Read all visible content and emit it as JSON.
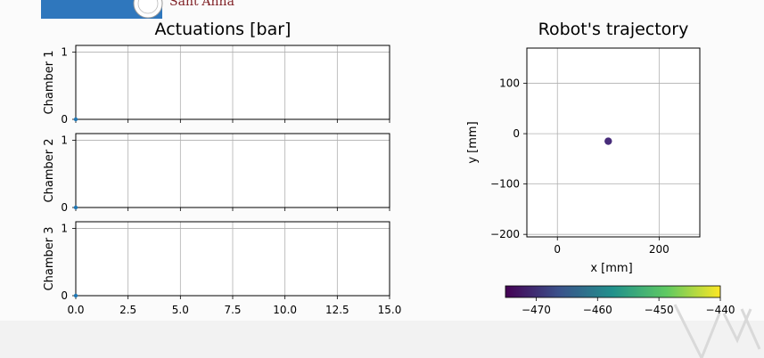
{
  "header": {
    "logo_text": "Sant'Anna",
    "brand_color": "#2f77bd",
    "logo_color": "#7e1d22"
  },
  "chart_data": [
    {
      "type": "line",
      "title": "Actuations [bar]",
      "panels": [
        {
          "ylabel": "Chamber 1",
          "ylim": [
            0,
            1.1
          ]
        },
        {
          "ylabel": "Chamber 2",
          "ylim": [
            0,
            1.1
          ]
        },
        {
          "ylabel": "Chamber 3",
          "ylim": [
            0,
            1.1
          ]
        }
      ],
      "y_ticks": [
        "0",
        "1"
      ],
      "x_ticks": [
        "0.0",
        "2.5",
        "5.0",
        "7.5",
        "10.0",
        "12.5",
        "15.0"
      ],
      "xlim": [
        0,
        15
      ],
      "series": [
        {
          "x": [
            0.0
          ],
          "y": [
            0.0
          ]
        },
        {
          "x": [
            0.0
          ],
          "y": [
            0.0
          ]
        },
        {
          "x": [
            0.0
          ],
          "y": [
            0.0
          ]
        }
      ],
      "grid": true,
      "color": "#1f77b4"
    },
    {
      "type": "scatter",
      "title": "Robot's trajectory",
      "xlabel": "x [mm]",
      "ylabel": "y [mm]",
      "xlim": [
        -60,
        280
      ],
      "ylim": [
        -205,
        170
      ],
      "x_ticks": [
        {
          "v": 0,
          "label": "0"
        },
        {
          "v": 200,
          "label": "200"
        }
      ],
      "y_ticks": [
        {
          "v": 100,
          "label": "100"
        },
        {
          "v": 0,
          "label": "0"
        },
        {
          "v": -100,
          "label": "−100"
        },
        {
          "v": -200,
          "label": "−200"
        }
      ],
      "points": [
        {
          "x": 100,
          "y": -15
        }
      ],
      "point_color": "#472c7a",
      "grid": true,
      "colorbar": {
        "ticks": [
          "−470",
          "−460",
          "−450",
          "−440"
        ],
        "range": [
          -475,
          -440
        ],
        "colormap": "viridis"
      }
    }
  ]
}
